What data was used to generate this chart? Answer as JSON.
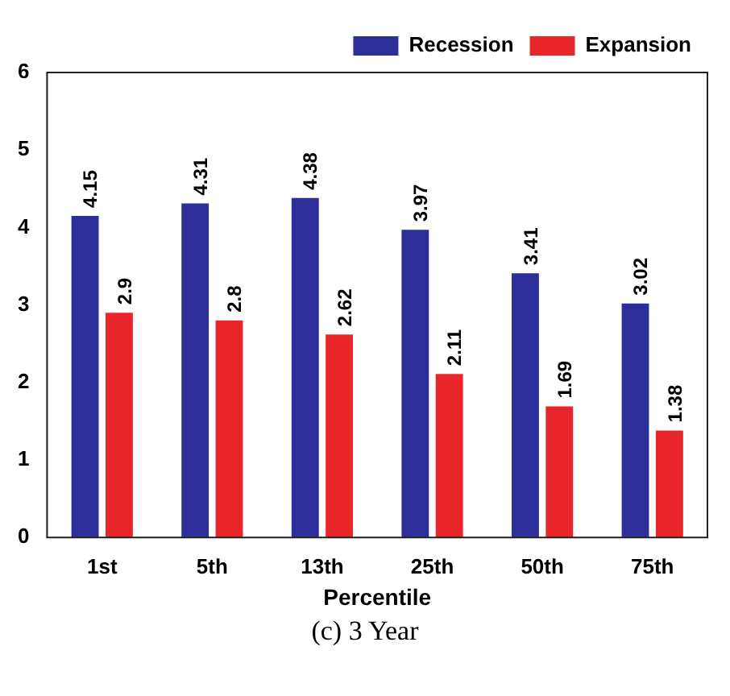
{
  "chart_data": {
    "type": "bar",
    "xlabel": "Percentile",
    "categories": [
      "1st",
      "5th",
      "13th",
      "25th",
      "50th",
      "75th"
    ],
    "series": [
      {
        "name": "Recession",
        "color": "#2e2e9a",
        "values": [
          4.15,
          4.31,
          4.38,
          3.97,
          3.41,
          3.02
        ]
      },
      {
        "name": "Expansion",
        "color": "#e8262a",
        "values": [
          2.9,
          2.8,
          2.62,
          2.11,
          1.69,
          1.38
        ]
      }
    ],
    "ylim": [
      0,
      6
    ],
    "yticks": [
      0,
      1,
      2,
      3,
      4,
      5,
      6
    ],
    "grid": false,
    "legend": "top right",
    "data_labels": true,
    "annotations": [
      "(c) 3 Year"
    ]
  }
}
